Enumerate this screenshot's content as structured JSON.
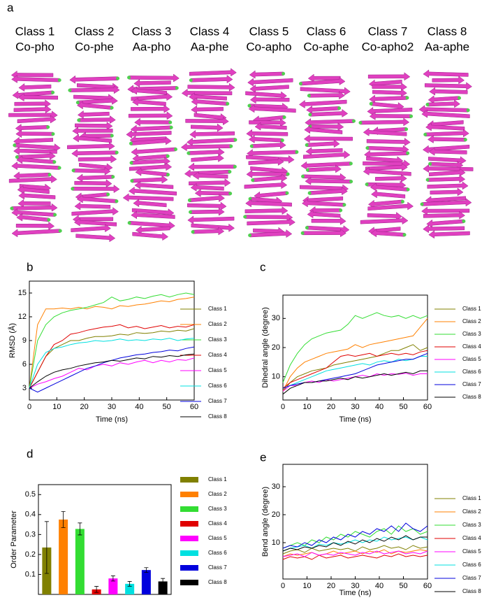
{
  "panel_labels": [
    "a",
    "b",
    "c",
    "d",
    "e"
  ],
  "structures": [
    {
      "class": "Class 1",
      "name": "Co-pho"
    },
    {
      "class": "Class 2",
      "name": "Co-phe"
    },
    {
      "class": "Class 3",
      "name": "Aa-pho"
    },
    {
      "class": "Class 4",
      "name": "Aa-phe"
    },
    {
      "class": "Class 5",
      "name": "Co-apho"
    },
    {
      "class": "Class 6",
      "name": "Co-aphe"
    },
    {
      "class": "Class 7",
      "name": "Co-apho2"
    },
    {
      "class": "Class 8",
      "name": "Aa-aphe"
    }
  ],
  "chart_data": [
    {
      "type": "line",
      "xlabel": "Time (ns)",
      "ylabel": "RMSD (Å)",
      "x": [
        0,
        3,
        6,
        9,
        12,
        15,
        18,
        21,
        24,
        27,
        30,
        33,
        36,
        39,
        42,
        45,
        48,
        51,
        54,
        57,
        60
      ],
      "xlim": [
        0,
        60
      ],
      "xticks": [
        0,
        10,
        20,
        30,
        40,
        50,
        60
      ],
      "ylim": [
        1.5,
        16.5
      ],
      "yticks": [
        3,
        6,
        9,
        12,
        15
      ],
      "series": [
        {
          "name": "Class 1",
          "color": "#808000",
          "values": [
            3,
            5,
            7,
            8,
            8.5,
            9,
            9,
            9.3,
            9.5,
            9.5,
            9.6,
            9.8,
            9.7,
            10,
            9.9,
            10,
            10.2,
            10.1,
            10.3,
            10.2,
            10.5
          ]
        },
        {
          "name": "Class 2",
          "color": "#ff8000",
          "values": [
            3,
            11,
            13,
            13,
            13.1,
            13,
            13.2,
            13,
            13.3,
            13.2,
            13,
            13.4,
            13.3,
            13.5,
            13.6,
            13.8,
            14,
            13.9,
            14.2,
            14.3,
            14.5
          ]
        },
        {
          "name": "Class 3",
          "color": "#33dd33",
          "values": [
            3,
            9,
            11,
            12,
            12.5,
            12.8,
            13,
            13.2,
            13.5,
            13.8,
            14.5,
            14,
            14.2,
            14.5,
            14.3,
            14.6,
            14.8,
            14.5,
            14.8,
            15,
            14.8
          ]
        },
        {
          "name": "Class 4",
          "color": "#e00000",
          "values": [
            3,
            5,
            7,
            8.5,
            9,
            9.8,
            10,
            10.3,
            10.5,
            10.7,
            10.8,
            11,
            10.6,
            10.8,
            10.5,
            10.7,
            10.9,
            10.6,
            10.8,
            10.7,
            11
          ]
        },
        {
          "name": "Class 5",
          "color": "#ff00ff",
          "values": [
            3,
            3.5,
            3.8,
            4.2,
            4.5,
            5,
            5.5,
            5.3,
            5.8,
            6,
            5.8,
            6.2,
            6,
            6.3,
            6.5,
            6.2,
            6.5,
            6.3,
            6.6,
            6.5,
            6.8
          ]
        },
        {
          "name": "Class 6",
          "color": "#00e0e0",
          "values": [
            3,
            6,
            7.5,
            8,
            8.2,
            8.5,
            8.7,
            8.8,
            9,
            8.9,
            9,
            9.2,
            9,
            9.1,
            9,
            9.2,
            9.1,
            9.3,
            9,
            9.2,
            9.3
          ]
        },
        {
          "name": "Class 7",
          "color": "#0000dd",
          "values": [
            3,
            2.5,
            3,
            3.5,
            4,
            4.5,
            5,
            5.5,
            5.8,
            6.2,
            6.5,
            6.8,
            7,
            7.2,
            7.3,
            7.5,
            7.6,
            7.8,
            7.7,
            8,
            8.2
          ]
        },
        {
          "name": "Class 8",
          "color": "#000000",
          "values": [
            3,
            3.8,
            4.5,
            5,
            5.3,
            5.5,
            5.8,
            6,
            6.2,
            6.3,
            6.5,
            6.4,
            6.6,
            6.8,
            6.7,
            7,
            6.9,
            7.1,
            7,
            7.2,
            7.3
          ]
        }
      ]
    },
    {
      "type": "line",
      "xlabel": "Time (ns)",
      "ylabel": "Dihedral angle (degree)",
      "x": [
        0,
        3,
        6,
        9,
        12,
        15,
        18,
        21,
        24,
        27,
        30,
        33,
        36,
        39,
        42,
        45,
        48,
        51,
        54,
        57,
        60
      ],
      "xlim": [
        0,
        60
      ],
      "xticks": [
        0,
        10,
        20,
        30,
        40,
        50,
        60
      ],
      "ylim": [
        2,
        38
      ],
      "yticks": [
        10,
        20,
        30
      ],
      "series": [
        {
          "name": "Class 1",
          "color": "#808000",
          "values": [
            5,
            8,
            10,
            11,
            12,
            12.5,
            13,
            14,
            14.5,
            15,
            15.5,
            16,
            16.5,
            17,
            18,
            19,
            19,
            20,
            21,
            19,
            20
          ]
        },
        {
          "name": "Class 2",
          "color": "#ff8000",
          "values": [
            5,
            10,
            13,
            15,
            16,
            17,
            18,
            18.5,
            19,
            19.5,
            21,
            20,
            21,
            21.5,
            22,
            22.5,
            23,
            23.5,
            24,
            27,
            30
          ]
        },
        {
          "name": "Class 3",
          "color": "#33dd33",
          "values": [
            8,
            14,
            18,
            21,
            23,
            24,
            25,
            25.5,
            26,
            28,
            31,
            30,
            31,
            32,
            31,
            30.5,
            31,
            30,
            31,
            30,
            31
          ]
        },
        {
          "name": "Class 4",
          "color": "#e00000",
          "values": [
            6,
            8,
            9,
            10,
            11,
            12,
            13,
            15,
            17,
            17.5,
            17,
            17.5,
            18,
            17,
            17.5,
            18,
            17.5,
            18,
            17.5,
            18.5,
            19
          ]
        },
        {
          "name": "Class 5",
          "color": "#ff00ff",
          "values": [
            5,
            7,
            7,
            8,
            8.5,
            8,
            9,
            8.5,
            9,
            9.5,
            10,
            10.5,
            10,
            11,
            10.5,
            11,
            10.8,
            11.2,
            10.5,
            11,
            11
          ]
        },
        {
          "name": "Class 6",
          "color": "#00e0e0",
          "values": [
            6,
            7,
            8,
            9,
            10,
            11,
            12,
            12.5,
            13,
            13.5,
            14,
            14.5,
            14,
            15,
            15.5,
            15,
            16,
            15.5,
            16,
            17,
            17
          ]
        },
        {
          "name": "Class 7",
          "color": "#0000dd",
          "values": [
            6,
            7,
            7.5,
            8,
            8,
            8.5,
            9,
            9.5,
            10,
            10.5,
            11,
            12,
            13,
            14,
            14.5,
            15,
            15.5,
            16,
            16,
            17,
            18
          ]
        },
        {
          "name": "Class 8",
          "color": "#000000",
          "values": [
            4,
            6,
            7,
            8,
            8,
            8.5,
            8.5,
            9,
            9.5,
            9,
            10,
            9.5,
            10,
            10.5,
            11,
            10.5,
            11,
            11.5,
            11,
            12,
            12
          ]
        }
      ]
    },
    {
      "type": "bar",
      "ylabel": "Order Parameter",
      "categories": [
        "Class 1",
        "Class 2",
        "Class 3",
        "Class 4",
        "Class 5",
        "Class 6",
        "Class 7",
        "Class 8"
      ],
      "colors": [
        "#808000",
        "#ff8000",
        "#33dd33",
        "#e00000",
        "#ff00ff",
        "#00e0e0",
        "#0000dd",
        "#000000"
      ],
      "values": [
        0.235,
        0.375,
        0.328,
        0.025,
        0.08,
        0.053,
        0.122,
        0.065
      ],
      "errors": [
        0.13,
        0.04,
        0.03,
        0.015,
        0.013,
        0.012,
        0.012,
        0.015
      ],
      "ylim": [
        0,
        0.55
      ],
      "yticks": [
        0.1,
        0.2,
        0.3,
        0.4,
        0.5
      ]
    },
    {
      "type": "line",
      "xlabel": "Time (ns)",
      "ylabel": "Bend angle (degree)",
      "x": [
        0,
        3,
        6,
        9,
        12,
        15,
        18,
        21,
        24,
        27,
        30,
        33,
        36,
        39,
        42,
        45,
        48,
        51,
        54,
        57,
        60
      ],
      "xlim": [
        0,
        60
      ],
      "xticks": [
        0,
        10,
        20,
        30,
        40,
        50,
        60
      ],
      "ylim": [
        -3,
        38
      ],
      "yticks": [
        10,
        20,
        30
      ],
      "series": [
        {
          "name": "Class 1",
          "color": "#808000",
          "values": [
            6,
            7,
            7.5,
            6.5,
            8,
            7,
            7.5,
            8,
            7.5,
            8,
            7,
            8.5,
            7.5,
            8,
            9,
            8,
            8.5,
            7.5,
            9,
            8,
            8.5
          ]
        },
        {
          "name": "Class 2",
          "color": "#ff8000",
          "values": [
            5,
            6,
            5.5,
            6,
            6.5,
            5.5,
            6,
            7,
            6,
            6.5,
            7,
            6,
            7,
            6.5,
            7.5,
            6,
            7,
            6.5,
            7,
            7.5,
            7
          ]
        },
        {
          "name": "Class 3",
          "color": "#33dd33",
          "values": [
            8,
            9,
            10,
            9,
            11,
            10,
            12,
            11,
            13,
            12,
            14,
            13,
            12,
            14,
            15,
            13,
            16,
            14,
            15,
            13,
            14
          ]
        },
        {
          "name": "Class 4",
          "color": "#e00000",
          "values": [
            4,
            5,
            4.5,
            5,
            4,
            5.5,
            4.5,
            5,
            5.5,
            4.5,
            5,
            5.5,
            5,
            4.5,
            5.5,
            5,
            6,
            5,
            5.5,
            5,
            5.5
          ]
        },
        {
          "name": "Class 5",
          "color": "#ff00ff",
          "values": [
            5,
            5.5,
            6,
            5,
            6.5,
            5.5,
            6,
            5.5,
            6.5,
            6,
            5.5,
            6.5,
            6,
            7,
            6,
            6.5,
            7,
            6,
            6.5,
            6,
            7
          ]
        },
        {
          "name": "Class 6",
          "color": "#00e0e0",
          "values": [
            7,
            8,
            8.5,
            9,
            8,
            9.5,
            9,
            10,
            9.5,
            10,
            11,
            10,
            11,
            10.5,
            12,
            11,
            11.5,
            12,
            11,
            12,
            11
          ]
        },
        {
          "name": "Class 7",
          "color": "#0000dd",
          "values": [
            8,
            9,
            8.5,
            10,
            9,
            11,
            10,
            12,
            11,
            13,
            12,
            14,
            13,
            15,
            14,
            16,
            14,
            17,
            15,
            14,
            16
          ]
        },
        {
          "name": "Class 8",
          "color": "#000000",
          "values": [
            7,
            8,
            7.5,
            8.5,
            8,
            9,
            8.5,
            10,
            9,
            10.5,
            9.5,
            11,
            10,
            11.5,
            10.5,
            12,
            11,
            12.5,
            11,
            12,
            12
          ]
        }
      ]
    }
  ]
}
